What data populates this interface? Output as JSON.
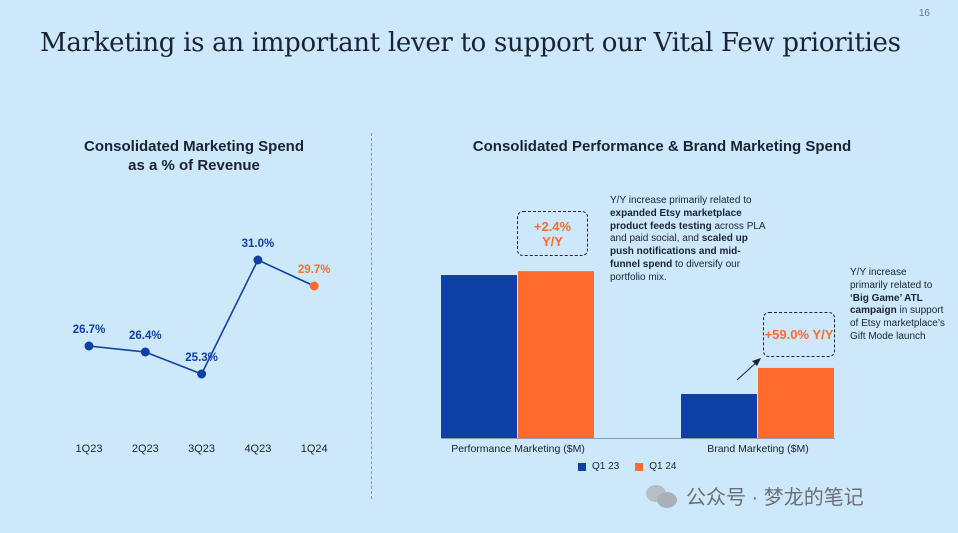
{
  "page_number": "16",
  "title": "Marketing is an important lever to support our Vital Few priorities",
  "colors": {
    "blue": "#0e3fa5",
    "orange": "#ff6b2c",
    "background": "#cde8fb"
  },
  "chart_data": [
    {
      "type": "line",
      "title_line1": "Consolidated Marketing Spend",
      "title_line2": "as a % of Revenue",
      "categories": [
        "1Q23",
        "2Q23",
        "3Q23",
        "4Q23",
        "1Q24"
      ],
      "values": [
        26.7,
        26.4,
        25.3,
        31.0,
        29.7
      ],
      "labels": [
        "26.7%",
        "26.4%",
        "25.3%",
        "31.0%",
        "29.7%"
      ],
      "highlight_last": true,
      "ylim": [
        24,
        32
      ]
    },
    {
      "type": "bar",
      "title": "Consolidated Performance & Brand Marketing Spend",
      "categories": [
        "Performance Marketing ($M)",
        "Brand Marketing ($M)"
      ],
      "series": [
        {
          "name": "Q1 23",
          "values": [
            100,
            27
          ]
        },
        {
          "name": "Q1 24",
          "values": [
            102.4,
            43
          ]
        }
      ],
      "ylim": [
        0,
        108
      ]
    }
  ],
  "callouts": {
    "performance": {
      "line1": "+2.4%",
      "line2": "Y/Y"
    },
    "brand": {
      "text": "+59.0% Y/Y"
    }
  },
  "annotations": {
    "performance": {
      "t1": "Y/Y increase primarily related to ",
      "b1": "expanded Etsy marketplace product feeds testing",
      "t2": " across PLA and paid social, and ",
      "b2": "scaled up push notifications and mid-funnel spend",
      "t3": " to diversify our portfolio mix."
    },
    "brand": {
      "t1": "Y/Y increase primarily related to ",
      "b1": "‘Big Game’ ATL campaign",
      "t2": " in support of Etsy marketplace’s Gift Mode launch"
    }
  },
  "watermark": {
    "text": "公众号 · 梦龙的笔记",
    "icon": "wechat-icon"
  }
}
